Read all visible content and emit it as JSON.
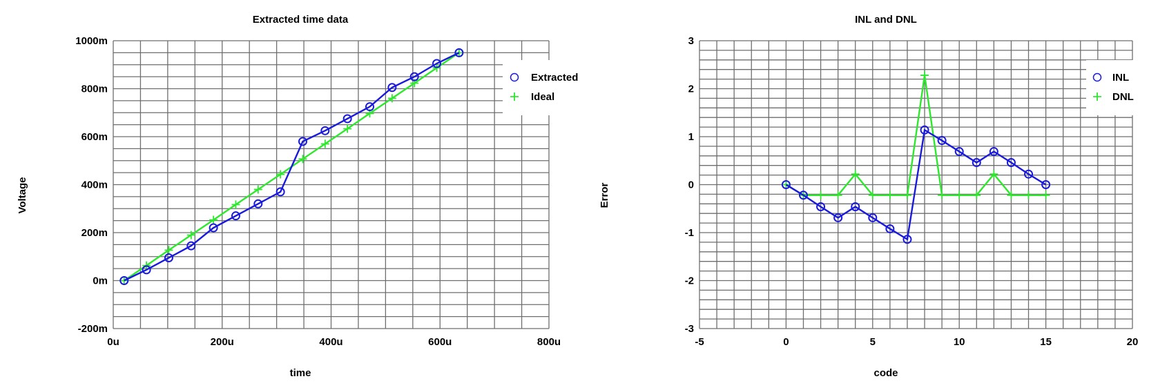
{
  "chart_data": [
    {
      "type": "line",
      "title": "Extracted time data",
      "xlabel": "time",
      "ylabel": "Voltage",
      "xlim": [
        0,
        800
      ],
      "ylim": [
        -200,
        1000
      ],
      "x_ticks": [
        0,
        200,
        400,
        600,
        800
      ],
      "x_tick_labels": [
        "0u",
        "200u",
        "400u",
        "600u",
        "800u"
      ],
      "y_ticks": [
        -200,
        0,
        200,
        400,
        600,
        800,
        1000
      ],
      "y_tick_labels": [
        "-200m",
        "0m",
        "200m",
        "400m",
        "600m",
        "800m",
        "1000m"
      ],
      "x_units": "u",
      "y_units": "m",
      "grid": true,
      "legend_position": "top-right",
      "series": [
        {
          "name": "Extracted",
          "color": "#1a1adc",
          "marker": "circle",
          "x": [
            20,
            61,
            102,
            143,
            184,
            225,
            266,
            307,
            348,
            389,
            430,
            471,
            512,
            553,
            594,
            635
          ],
          "y": [
            0,
            45,
            95,
            145,
            220,
            270,
            320,
            370,
            580,
            625,
            675,
            725,
            805,
            850,
            905,
            950
          ]
        },
        {
          "name": "Ideal",
          "color": "#2ee82e",
          "marker": "plus",
          "x": [
            20,
            61,
            102,
            143,
            184,
            225,
            266,
            307,
            348,
            389,
            430,
            471,
            512,
            553,
            594,
            635
          ],
          "y": [
            0,
            63,
            127,
            190,
            253,
            317,
            380,
            443,
            507,
            570,
            633,
            697,
            760,
            823,
            887,
            950
          ]
        }
      ]
    },
    {
      "type": "line",
      "title": "INL and DNL",
      "xlabel": "code",
      "ylabel": "Error",
      "xlim": [
        -5,
        20
      ],
      "ylim": [
        -3,
        3
      ],
      "x_ticks": [
        -5,
        0,
        5,
        10,
        15,
        20
      ],
      "x_tick_labels": [
        "-5",
        "0",
        "5",
        "10",
        "15",
        "20"
      ],
      "y_ticks": [
        -3,
        -2,
        -1,
        0,
        1,
        2,
        3
      ],
      "y_tick_labels": [
        "-3",
        "-2",
        "-1",
        "0",
        "1",
        "2",
        "3"
      ],
      "grid": true,
      "legend_position": "top-right",
      "series": [
        {
          "name": "INL",
          "color": "#1a1adc",
          "marker": "circle",
          "x": [
            0,
            1,
            2,
            3,
            4,
            5,
            6,
            7,
            8,
            9,
            10,
            11,
            12,
            13,
            14,
            15
          ],
          "y": [
            0,
            -0.22,
            -0.46,
            -0.69,
            -0.46,
            -0.69,
            -0.92,
            -1.14,
            1.14,
            0.92,
            0.69,
            0.46,
            0.69,
            0.46,
            0.22,
            0
          ]
        },
        {
          "name": "DNL",
          "color": "#2ee82e",
          "marker": "plus",
          "x": [
            0,
            1,
            2,
            3,
            4,
            5,
            6,
            7,
            8,
            9,
            10,
            11,
            12,
            13,
            14,
            15
          ],
          "y": [
            0,
            -0.22,
            -0.22,
            -0.22,
            0.22,
            -0.22,
            -0.22,
            -0.22,
            2.28,
            -0.22,
            -0.22,
            -0.22,
            0.22,
            -0.22,
            -0.22,
            -0.22
          ]
        }
      ]
    }
  ]
}
